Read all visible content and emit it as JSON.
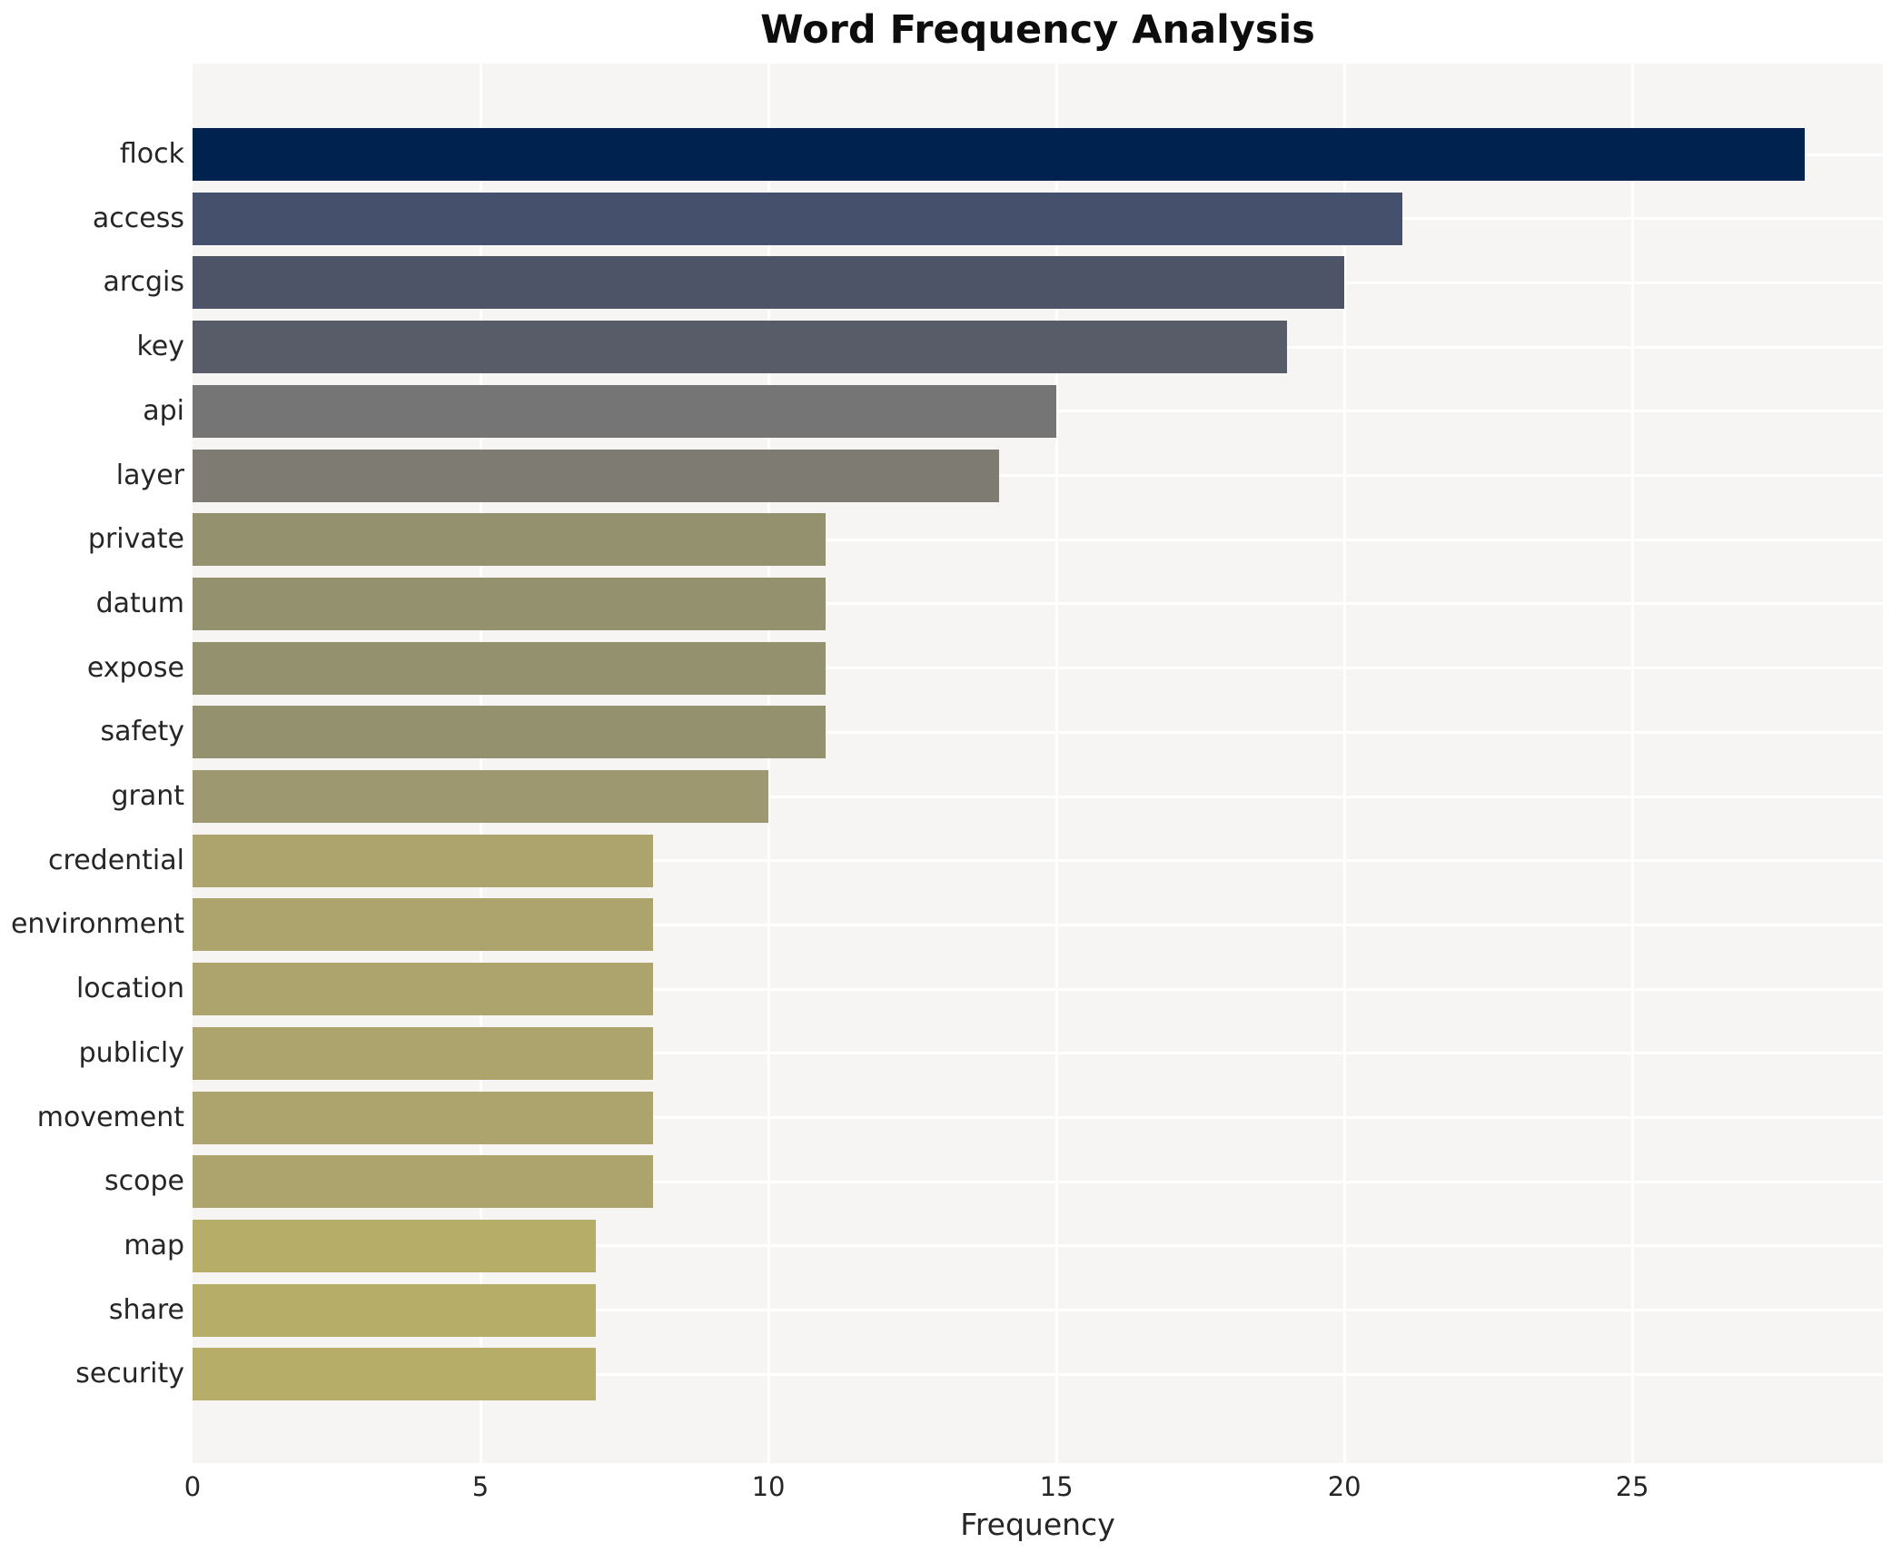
{
  "title": "Word Frequency Analysis",
  "chart_data": {
    "type": "bar",
    "orientation": "horizontal",
    "title": "Word Frequency Analysis",
    "xlabel": "Frequency",
    "ylabel": "",
    "categories": [
      "flock",
      "access",
      "arcgis",
      "key",
      "api",
      "layer",
      "private",
      "datum",
      "expose",
      "safety",
      "grant",
      "credential",
      "environment",
      "location",
      "publicly",
      "movement",
      "scope",
      "map",
      "share",
      "security"
    ],
    "values": [
      28,
      21,
      20,
      19,
      15,
      14,
      11,
      11,
      11,
      11,
      10,
      8,
      8,
      8,
      8,
      8,
      8,
      7,
      7,
      7
    ],
    "bar_colors": [
      "#00224e",
      "#45506c",
      "#4d5468",
      "#575c68",
      "#757575",
      "#7d7b72",
      "#94916f",
      "#94916f",
      "#94916f",
      "#94916f",
      "#9e9870",
      "#aca46c",
      "#aca46c",
      "#aca46c",
      "#aca46c",
      "#aca46c",
      "#aca46c",
      "#b6ad69",
      "#b6ad69",
      "#b6ad69"
    ],
    "x_ticks": [
      0,
      5,
      10,
      15,
      20,
      25
    ],
    "xlim": [
      0,
      29.35
    ],
    "grid": "on",
    "legend": "none",
    "plot_background": "#f6f5f3",
    "figure_background": "#ffffff",
    "gridline_color": "#ffffff",
    "axis_text_color": "#262626",
    "title_color": "#0d0d0d"
  }
}
